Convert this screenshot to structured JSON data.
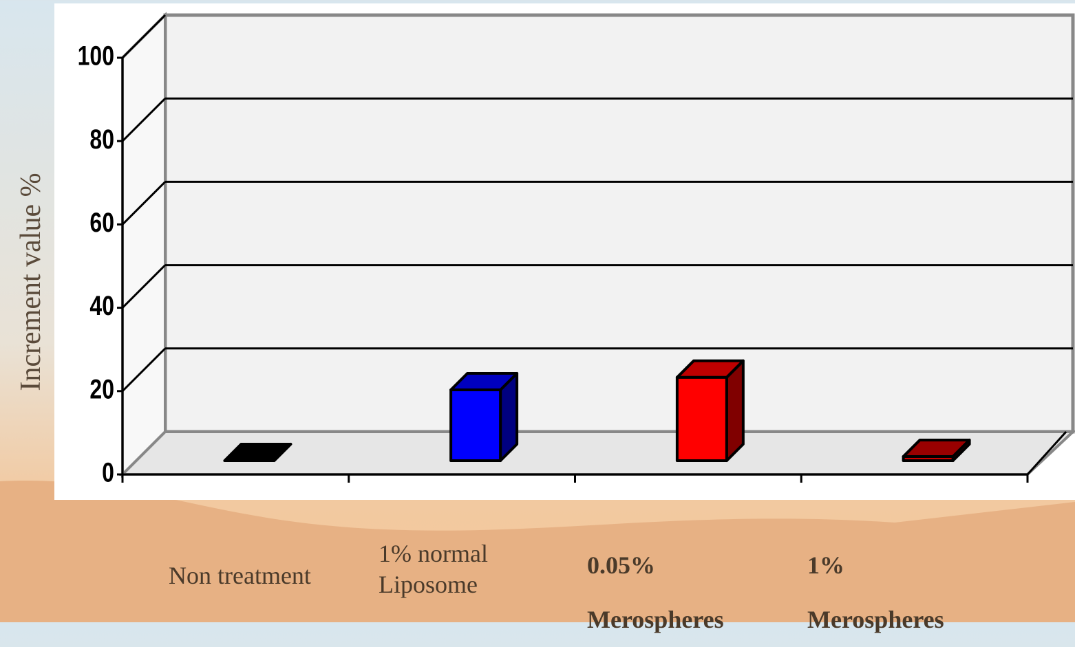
{
  "chart_data": {
    "type": "bar3d",
    "y_label": "Increment value %",
    "categories": [
      "Non treatment",
      "1% normal Liposome",
      "0.05% Merospheres",
      "1% Merospheres"
    ],
    "values": [
      0,
      17,
      20,
      1
    ],
    "colors": [
      "#000000",
      "#0000ff",
      "#ff0000",
      "#cc0000"
    ],
    "ylim": [
      0,
      100
    ],
    "yticks": [
      0,
      20,
      40,
      60,
      80,
      100
    ],
    "grid": true
  }
}
